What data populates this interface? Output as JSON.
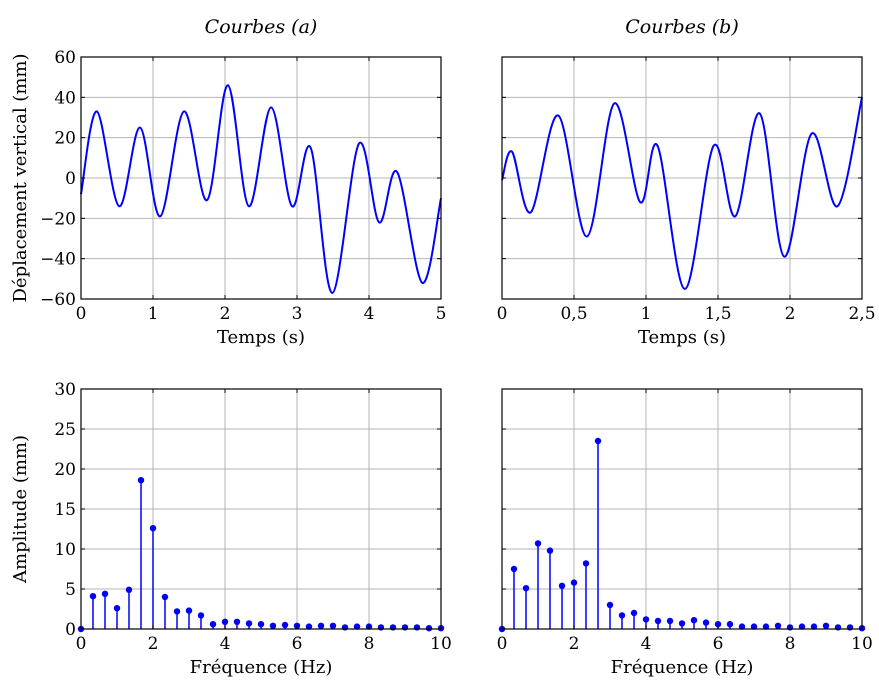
{
  "chart_data": [
    {
      "id": "p-a-time",
      "type": "line",
      "title": "Courbes (a)",
      "xlabel": "Temps (s)",
      "ylabel": "Déplacement vertical (mm)",
      "xlim": [
        0,
        5
      ],
      "ylim": [
        -60,
        60
      ],
      "xticks": [
        0,
        1,
        2,
        3,
        4,
        5
      ],
      "xtick_labels": [
        "0",
        "1",
        "2",
        "3",
        "4",
        "5"
      ],
      "yticks": [
        -60,
        -40,
        -20,
        0,
        20,
        40,
        60
      ],
      "ytick_labels": [
        "−60",
        "−40",
        "−20",
        "0",
        "20",
        "40",
        "60"
      ],
      "grid": true,
      "color": "#0000ff",
      "series": [
        {
          "x": [
            0,
            0.22,
            0.53,
            0.82,
            1.1,
            1.43,
            1.75,
            2.04,
            2.33,
            2.64,
            2.93,
            3.19,
            3.49,
            3.86,
            4.14,
            4.39,
            4.74,
            5.0
          ],
          "y": [
            -8,
            33,
            -14,
            25,
            -19,
            33,
            -11,
            46,
            -14,
            35,
            -14,
            15,
            -57,
            17,
            -22,
            3,
            -52,
            -10
          ]
        }
      ]
    },
    {
      "id": "p-b-time",
      "type": "line",
      "title": "Courbes (b)",
      "xlabel": "Temps (s)",
      "ylabel": "",
      "xlim": [
        0,
        2.5
      ],
      "ylim": [
        -60,
        60
      ],
      "xticks": [
        0,
        0.5,
        1,
        1.5,
        2,
        2.5
      ],
      "xtick_labels": [
        "0",
        "0,5",
        "1",
        "1,5",
        "2",
        "2,5"
      ],
      "yticks": [
        -60,
        -40,
        -20,
        0,
        20,
        40,
        60
      ],
      "ytick_labels": [],
      "grid": true,
      "color": "#0000ff",
      "series": [
        {
          "x": [
            0,
            0.07,
            0.2,
            0.39,
            0.59,
            0.78,
            0.96,
            1.08,
            1.27,
            1.47,
            1.62,
            1.79,
            1.96,
            2.15,
            2.33,
            2.5
          ],
          "y": [
            -1,
            13,
            -17,
            31,
            -29,
            37,
            -12,
            16,
            -55,
            16,
            -19,
            32,
            -39,
            22,
            -14,
            40
          ]
        }
      ]
    },
    {
      "id": "p-a-freq",
      "type": "stem",
      "title": "",
      "xlabel": "Fréquence (Hz)",
      "ylabel": "Amplitude (mm)",
      "xlim": [
        0,
        10
      ],
      "ylim": [
        0,
        30
      ],
      "xticks": [
        0,
        2,
        4,
        6,
        8,
        10
      ],
      "xtick_labels": [
        "0",
        "2",
        "4",
        "6",
        "8",
        "10"
      ],
      "yticks": [
        0,
        5,
        10,
        15,
        20,
        25,
        30
      ],
      "ytick_labels": [
        "0",
        "5",
        "10",
        "15",
        "20",
        "25",
        "30"
      ],
      "grid": true,
      "color": "#0000ff",
      "x": [
        0,
        0.333,
        0.667,
        1.0,
        1.333,
        1.667,
        2.0,
        2.333,
        2.667,
        3.0,
        3.333,
        3.667,
        4.0,
        4.333,
        4.667,
        5.0,
        5.333,
        5.667,
        6.0,
        6.333,
        6.667,
        7.0,
        7.333,
        7.667,
        8.0,
        8.333,
        8.667,
        9.0,
        9.333,
        9.667,
        10.0
      ],
      "y": [
        0,
        4.1,
        4.4,
        2.6,
        4.9,
        18.6,
        12.6,
        4.0,
        2.2,
        2.3,
        1.7,
        0.6,
        0.9,
        0.9,
        0.7,
        0.6,
        0.4,
        0.5,
        0.4,
        0.3,
        0.4,
        0.4,
        0.2,
        0.3,
        0.3,
        0.2,
        0.2,
        0.2,
        0.2,
        0.1,
        0.1
      ]
    },
    {
      "id": "p-b-freq",
      "type": "stem",
      "title": "",
      "xlabel": "Fréquence (Hz)",
      "ylabel": "",
      "xlim": [
        0,
        10
      ],
      "ylim": [
        0,
        30
      ],
      "xticks": [
        0,
        2,
        4,
        6,
        8,
        10
      ],
      "xtick_labels": [
        "0",
        "2",
        "4",
        "6",
        "8",
        "10"
      ],
      "yticks": [
        0,
        5,
        10,
        15,
        20,
        25,
        30
      ],
      "ytick_labels": [],
      "grid": true,
      "color": "#0000ff",
      "x": [
        0,
        0.333,
        0.667,
        1.0,
        1.333,
        1.667,
        2.0,
        2.333,
        2.667,
        3.0,
        3.333,
        3.667,
        4.0,
        4.333,
        4.667,
        5.0,
        5.333,
        5.667,
        6.0,
        6.333,
        6.667,
        7.0,
        7.333,
        7.667,
        8.0,
        8.333,
        8.667,
        9.0,
        9.333,
        9.667,
        10.0
      ],
      "y": [
        0,
        7.5,
        5.1,
        10.7,
        9.8,
        5.4,
        5.8,
        8.2,
        23.5,
        3.0,
        1.7,
        2.0,
        1.2,
        1.0,
        1.0,
        0.7,
        1.1,
        0.8,
        0.6,
        0.6,
        0.3,
        0.3,
        0.3,
        0.4,
        0.2,
        0.3,
        0.3,
        0.4,
        0.2,
        0.2,
        0.1
      ]
    }
  ]
}
